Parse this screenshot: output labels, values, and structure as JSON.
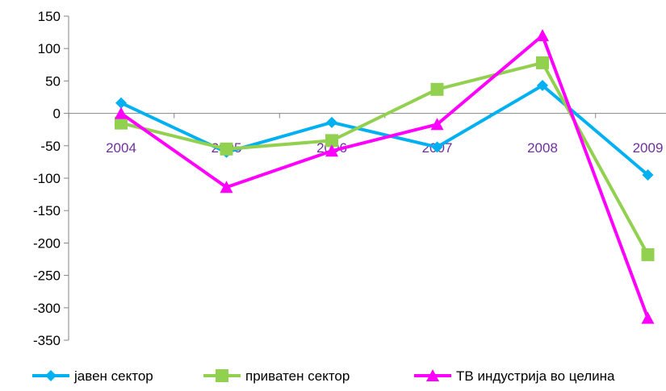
{
  "chart_data": {
    "type": "line",
    "categories": [
      "2004",
      "2005",
      "2006",
      "2007",
      "2008",
      "2009"
    ],
    "series": [
      {
        "name": "јавен сектор",
        "color": "#00B0F0",
        "marker": "diamond",
        "values": [
          16,
          -60,
          -14,
          -52,
          43,
          -95
        ]
      },
      {
        "name": "приватен сектор",
        "color": "#92D050",
        "marker": "square",
        "values": [
          -15,
          -55,
          -42,
          37,
          78,
          -218
        ]
      },
      {
        "name": "ТВ индустрија во целина",
        "color": "#FF00FF",
        "marker": "triangle",
        "values": [
          0,
          -114,
          -58,
          -17,
          120,
          -316
        ]
      }
    ],
    "y_ticks": [
      "150",
      "100",
      "50",
      "0",
      "-50",
      "-100",
      "-150",
      "-200",
      "-250",
      "-300",
      "-350"
    ],
    "ylim": [
      -350,
      150
    ],
    "xtick_color": "#7030A0",
    "grid": false,
    "legend_position": "bottom"
  }
}
